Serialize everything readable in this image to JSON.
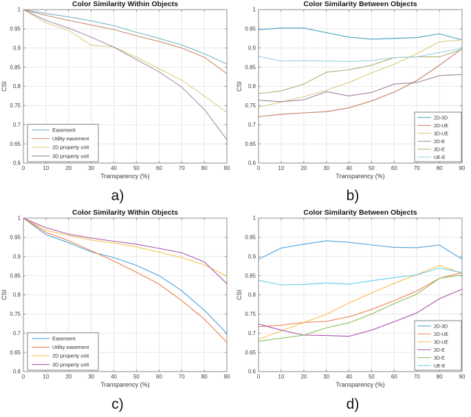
{
  "figure": {
    "background": "#ffffff",
    "grid_color": "#e8e8e8",
    "axis_color": "#8a8a8a"
  },
  "chart_data": [
    {
      "type": "line",
      "title": "Color Similarity Within Objects",
      "xlabel": "Transparency (%)",
      "ylabel": "CSI",
      "sublabel": "a)",
      "xlim": [
        0,
        90
      ],
      "ylim": [
        0.6,
        1
      ],
      "xticks": [
        0,
        10,
        20,
        30,
        40,
        50,
        60,
        70,
        80,
        90
      ],
      "yticks": [
        0.6,
        0.65,
        0.7,
        0.75,
        0.8,
        0.85,
        0.9,
        0.95,
        1
      ],
      "grid": true,
      "legend_pos": "lower-left",
      "x": [
        0,
        10,
        20,
        30,
        40,
        50,
        60,
        70,
        80,
        90
      ],
      "series": [
        {
          "name": "Easement",
          "color": "#72b5c4",
          "values": [
            1,
            0.99,
            0.981,
            0.971,
            0.958,
            0.941,
            0.925,
            0.908,
            0.885,
            0.858
          ]
        },
        {
          "name": "Utility easement",
          "color": "#c9886b",
          "values": [
            1,
            0.985,
            0.972,
            0.96,
            0.948,
            0.932,
            0.917,
            0.9,
            0.876,
            0.833
          ]
        },
        {
          "name": "2D property unit",
          "color": "#d9cc85",
          "values": [
            1,
            0.966,
            0.946,
            0.907,
            0.903,
            0.876,
            0.846,
            0.816,
            0.775,
            0.732
          ]
        },
        {
          "name": "3D property unit",
          "color": "#a38da7",
          "values": [
            1,
            0.972,
            0.952,
            0.928,
            0.902,
            0.87,
            0.838,
            0.798,
            0.74,
            0.661
          ]
        }
      ]
    },
    {
      "type": "line",
      "title": "Color Similarity Between Objects",
      "xlabel": "Transparency (%)",
      "ylabel": "CSI",
      "sublabel": "b)",
      "xlim": [
        0,
        90
      ],
      "ylim": [
        0.6,
        1
      ],
      "xticks": [
        0,
        10,
        20,
        30,
        40,
        50,
        60,
        70,
        80,
        90
      ],
      "yticks": [
        0.6,
        0.65,
        0.7,
        0.75,
        0.8,
        0.85,
        0.9,
        0.95,
        1
      ],
      "grid": true,
      "legend_pos": "lower-right",
      "x": [
        0,
        10,
        20,
        30,
        40,
        50,
        60,
        70,
        80,
        90
      ],
      "series": [
        {
          "name": "2D-3D",
          "color": "#3b9fc0",
          "values": [
            0.948,
            0.952,
            0.952,
            0.94,
            0.928,
            0.923,
            0.925,
            0.927,
            0.937,
            0.921
          ]
        },
        {
          "name": "2D-UE",
          "color": "#c27a5b",
          "values": [
            0.721,
            0.727,
            0.731,
            0.734,
            0.744,
            0.762,
            0.785,
            0.815,
            0.855,
            0.898
          ]
        },
        {
          "name": "3D-UE",
          "color": "#d7c97e",
          "values": [
            0.746,
            0.759,
            0.773,
            0.79,
            0.81,
            0.835,
            0.858,
            0.885,
            0.916,
            0.921
          ]
        },
        {
          "name": "2D-E",
          "color": "#9d81a1",
          "values": [
            0.764,
            0.76,
            0.765,
            0.786,
            0.775,
            0.784,
            0.806,
            0.81,
            0.828,
            0.831
          ]
        },
        {
          "name": "3D-E",
          "color": "#a9b076",
          "values": [
            0.781,
            0.788,
            0.806,
            0.837,
            0.843,
            0.855,
            0.875,
            0.877,
            0.877,
            0.896
          ]
        },
        {
          "name": "UE-E",
          "color": "#97d2de",
          "values": [
            0.878,
            0.866,
            0.867,
            0.866,
            0.865,
            0.867,
            0.875,
            0.877,
            0.888,
            0.899
          ]
        }
      ]
    },
    {
      "type": "line",
      "title": "Color Similarity Within Objects",
      "xlabel": "Transparency (%)",
      "ylabel": "CSI",
      "sublabel": "c)",
      "xlim": [
        0,
        90
      ],
      "ylim": [
        0.6,
        1
      ],
      "xticks": [
        0,
        10,
        20,
        30,
        40,
        50,
        60,
        70,
        80,
        90
      ],
      "yticks": [
        0.6,
        0.65,
        0.7,
        0.75,
        0.8,
        0.85,
        0.9,
        0.95,
        1
      ],
      "grid": true,
      "legend_pos": "lower-left",
      "x": [
        0,
        10,
        20,
        30,
        40,
        50,
        60,
        70,
        80,
        90
      ],
      "series": [
        {
          "name": "Easement",
          "color": "#4aa0dc",
          "values": [
            1,
            0.957,
            0.936,
            0.912,
            0.897,
            0.877,
            0.85,
            0.811,
            0.76,
            0.699
          ]
        },
        {
          "name": "Utility easement",
          "color": "#f07d4d",
          "values": [
            1,
            0.963,
            0.941,
            0.915,
            0.888,
            0.859,
            0.828,
            0.785,
            0.737,
            0.676
          ]
        },
        {
          "name": "2D property unit",
          "color": "#f5c44f",
          "values": [
            1,
            0.968,
            0.955,
            0.943,
            0.935,
            0.925,
            0.911,
            0.897,
            0.878,
            0.849
          ]
        },
        {
          "name": "3D property unit",
          "color": "#a855a8",
          "values": [
            1,
            0.975,
            0.958,
            0.948,
            0.94,
            0.932,
            0.921,
            0.91,
            0.886,
            0.829
          ]
        }
      ]
    },
    {
      "type": "line",
      "title": "Color Similarity Between Objects",
      "xlabel": "Transparency (%)",
      "ylabel": "CSI",
      "sublabel": "d)",
      "xlim": [
        0,
        90
      ],
      "ylim": [
        0.6,
        1
      ],
      "xticks": [
        0,
        10,
        20,
        30,
        40,
        50,
        60,
        70,
        80,
        90
      ],
      "yticks": [
        0.6,
        0.65,
        0.7,
        0.75,
        0.8,
        0.85,
        0.9,
        0.95,
        1
      ],
      "grid": true,
      "legend_pos": "lower-right",
      "x": [
        0,
        10,
        20,
        30,
        40,
        50,
        60,
        70,
        80,
        90
      ],
      "series": [
        {
          "name": "2D-3D",
          "color": "#4aa0dc",
          "values": [
            0.893,
            0.922,
            0.932,
            0.941,
            0.937,
            0.93,
            0.924,
            0.923,
            0.93,
            0.893
          ]
        },
        {
          "name": "2D-UE",
          "color": "#f07d4d",
          "values": [
            0.717,
            0.721,
            0.728,
            0.731,
            0.743,
            0.762,
            0.785,
            0.81,
            0.843,
            0.858
          ]
        },
        {
          "name": "3D-UE",
          "color": "#fbbc4d",
          "values": [
            0.684,
            0.706,
            0.728,
            0.749,
            0.779,
            0.805,
            0.83,
            0.853,
            0.877,
            0.856
          ]
        },
        {
          "name": "2D-E",
          "color": "#ae4fae",
          "values": [
            0.724,
            0.708,
            0.695,
            0.694,
            0.692,
            0.708,
            0.73,
            0.753,
            0.79,
            0.815
          ]
        },
        {
          "name": "3D-E",
          "color": "#84bc54",
          "values": [
            0.679,
            0.687,
            0.695,
            0.714,
            0.727,
            0.75,
            0.777,
            0.802,
            0.843,
            0.852
          ]
        },
        {
          "name": "UE-E",
          "color": "#61cbee",
          "values": [
            0.838,
            0.826,
            0.827,
            0.831,
            0.828,
            0.837,
            0.845,
            0.852,
            0.87,
            0.858
          ]
        }
      ]
    }
  ]
}
